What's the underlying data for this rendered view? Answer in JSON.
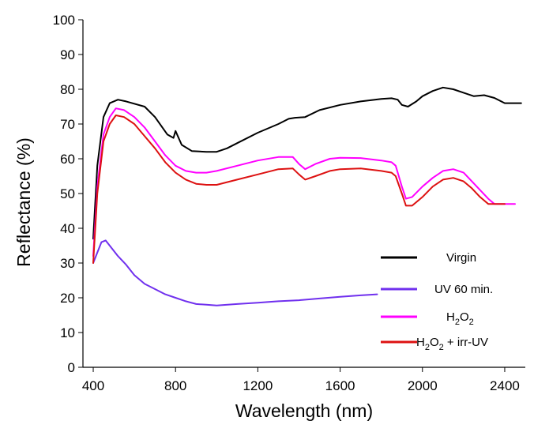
{
  "chart_data": {
    "type": "line",
    "title": "",
    "xlabel": "Wavelength (nm)",
    "ylabel": "Reflectance (%)",
    "xlim": [
      350,
      2500
    ],
    "ylim": [
      0,
      100
    ],
    "xticks": [
      400,
      800,
      1200,
      1600,
      2000,
      2400
    ],
    "yticks": [
      0,
      10,
      20,
      30,
      40,
      50,
      60,
      70,
      80,
      90,
      100
    ],
    "grid": false,
    "legend_position": "bottom-right",
    "series": [
      {
        "name": "Virgin",
        "color": "#000000",
        "points": [
          [
            400,
            37
          ],
          [
            420,
            58
          ],
          [
            450,
            72
          ],
          [
            480,
            76
          ],
          [
            520,
            77
          ],
          [
            560,
            76.5
          ],
          [
            650,
            75
          ],
          [
            700,
            72
          ],
          [
            760,
            67
          ],
          [
            790,
            66
          ],
          [
            800,
            68
          ],
          [
            830,
            64
          ],
          [
            880,
            62.2
          ],
          [
            950,
            62
          ],
          [
            1000,
            62
          ],
          [
            1050,
            63
          ],
          [
            1100,
            64.5
          ],
          [
            1200,
            67.5
          ],
          [
            1300,
            70
          ],
          [
            1350,
            71.5
          ],
          [
            1380,
            71.8
          ],
          [
            1430,
            72
          ],
          [
            1500,
            74
          ],
          [
            1600,
            75.5
          ],
          [
            1700,
            76.5
          ],
          [
            1800,
            77.2
          ],
          [
            1850,
            77.4
          ],
          [
            1880,
            77
          ],
          [
            1900,
            75.5
          ],
          [
            1930,
            75
          ],
          [
            1970,
            76.5
          ],
          [
            2000,
            78
          ],
          [
            2050,
            79.5
          ],
          [
            2100,
            80.5
          ],
          [
            2150,
            80
          ],
          [
            2200,
            79
          ],
          [
            2250,
            78
          ],
          [
            2300,
            78.3
          ],
          [
            2350,
            77.5
          ],
          [
            2400,
            76
          ],
          [
            2450,
            76
          ],
          [
            2480,
            76
          ]
        ]
      },
      {
        "name": "UV 60 min.",
        "color": "#7030ee",
        "points": [
          [
            400,
            30
          ],
          [
            420,
            33
          ],
          [
            440,
            36
          ],
          [
            460,
            36.5
          ],
          [
            480,
            35
          ],
          [
            520,
            32
          ],
          [
            560,
            29.5
          ],
          [
            600,
            26.5
          ],
          [
            650,
            24
          ],
          [
            700,
            22.5
          ],
          [
            750,
            21
          ],
          [
            800,
            20
          ],
          [
            850,
            19
          ],
          [
            900,
            18.2
          ],
          [
            950,
            18
          ],
          [
            1000,
            17.8
          ],
          [
            1100,
            18.2
          ],
          [
            1200,
            18.6
          ],
          [
            1300,
            19
          ],
          [
            1400,
            19.3
          ],
          [
            1500,
            19.8
          ],
          [
            1600,
            20.3
          ],
          [
            1700,
            20.7
          ],
          [
            1780,
            21
          ]
        ]
      },
      {
        "name": "H2O2",
        "color": "#ff00ff",
        "points": [
          [
            400,
            32
          ],
          [
            420,
            52
          ],
          [
            450,
            67
          ],
          [
            480,
            72
          ],
          [
            510,
            74.5
          ],
          [
            550,
            74
          ],
          [
            600,
            72
          ],
          [
            650,
            69
          ],
          [
            700,
            65
          ],
          [
            750,
            61
          ],
          [
            800,
            58
          ],
          [
            850,
            56.5
          ],
          [
            900,
            56
          ],
          [
            950,
            56
          ],
          [
            1000,
            56.5
          ],
          [
            1100,
            58
          ],
          [
            1200,
            59.5
          ],
          [
            1300,
            60.5
          ],
          [
            1370,
            60.5
          ],
          [
            1400,
            58.5
          ],
          [
            1430,
            57
          ],
          [
            1480,
            58.5
          ],
          [
            1550,
            60
          ],
          [
            1600,
            60.3
          ],
          [
            1700,
            60.2
          ],
          [
            1800,
            59.5
          ],
          [
            1850,
            59
          ],
          [
            1870,
            58
          ],
          [
            1900,
            52
          ],
          [
            1920,
            48.5
          ],
          [
            1950,
            49
          ],
          [
            2000,
            52
          ],
          [
            2050,
            54.5
          ],
          [
            2100,
            56.5
          ],
          [
            2150,
            57
          ],
          [
            2200,
            56
          ],
          [
            2240,
            53.5
          ],
          [
            2280,
            51
          ],
          [
            2320,
            48.5
          ],
          [
            2350,
            47
          ],
          [
            2400,
            47
          ],
          [
            2450,
            47
          ]
        ]
      },
      {
        "name": "H2O2 + irr-UV",
        "color": "#dd1111",
        "points": [
          [
            400,
            30
          ],
          [
            420,
            50
          ],
          [
            450,
            65
          ],
          [
            480,
            70
          ],
          [
            510,
            72.5
          ],
          [
            550,
            72
          ],
          [
            600,
            70
          ],
          [
            650,
            66.5
          ],
          [
            700,
            63
          ],
          [
            750,
            59
          ],
          [
            800,
            56
          ],
          [
            850,
            54
          ],
          [
            900,
            52.8
          ],
          [
            950,
            52.5
          ],
          [
            1000,
            52.5
          ],
          [
            1100,
            54
          ],
          [
            1200,
            55.5
          ],
          [
            1300,
            57
          ],
          [
            1370,
            57.2
          ],
          [
            1400,
            55.5
          ],
          [
            1430,
            54
          ],
          [
            1480,
            55
          ],
          [
            1550,
            56.5
          ],
          [
            1600,
            57
          ],
          [
            1700,
            57.2
          ],
          [
            1800,
            56.5
          ],
          [
            1850,
            56
          ],
          [
            1870,
            55
          ],
          [
            1900,
            50
          ],
          [
            1920,
            46.5
          ],
          [
            1950,
            46.5
          ],
          [
            2000,
            49
          ],
          [
            2050,
            52
          ],
          [
            2100,
            54
          ],
          [
            2150,
            54.5
          ],
          [
            2200,
            53.5
          ],
          [
            2240,
            51.5
          ],
          [
            2280,
            49
          ],
          [
            2320,
            47
          ],
          [
            2400,
            47
          ]
        ]
      }
    ],
    "legend": [
      {
        "label": "Virgin",
        "color": "#000000"
      },
      {
        "label": "UV 60 min.",
        "color": "#7030ee"
      },
      {
        "label": "H",
        "sub1": "2",
        "mid": "O",
        "sub2": "2",
        "suffix": "",
        "color": "#ff00ff"
      },
      {
        "label": "H",
        "sub1": "2",
        "mid": "O",
        "sub2": "2",
        "suffix": " + irr-UV",
        "color": "#dd1111"
      }
    ]
  }
}
